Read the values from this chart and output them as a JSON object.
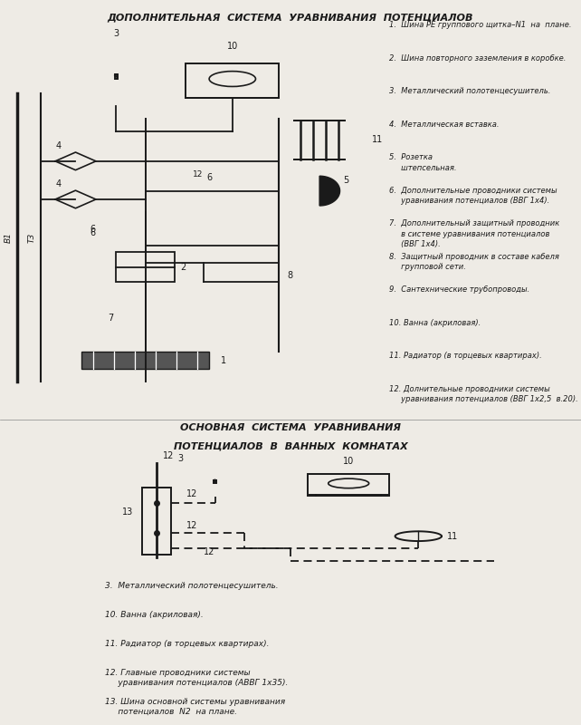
{
  "title1": "ДОПОЛНИТЕЛЬНАЯ  СИСТЕМА  УРАВНИВАНИЯ  ПОТЕНЦИАЛОВ",
  "title2_line1": "ОСНОВНАЯ  СИСТЕМА  УРАВНИВАНИЯ",
  "title2_line2": "ПОТЕНЦИАЛОВ  В  ВАННЫХ  КОМНАТАХ",
  "bg_color": "#eeebe5",
  "line_color": "#1a1a1a",
  "legend1": [
    "1.  Шина РЕ группового щитка–N1  на  плане.",
    "2.  Шина повторного заземления в коробке.",
    "3.  Металлический полотенцесушитель.",
    "4.  Металлическая вставка.",
    "5.  Розетка\n     штепсельная.",
    "6.  Дополнительные проводники системы\n     уравнивания потенциалов (ВВГ 1х4).",
    "7.  Дополнительный защитный проводник\n     в системе уравнивания потенциалов\n     (ВВГ 1х4).",
    "8.  Защитный проводник в составе кабеля\n     групповой сети.",
    "9.  Сантехнические трубопроводы.",
    "10. Ванна (акриловая).",
    "11. Радиатор (в торцевых квартирах).",
    "12. Долнительные проводники системы\n     уравнивания потенциалов (ВВГ 1х2,5  в.20)."
  ],
  "legend2": [
    "3.  Металлический полотенцесушитель.",
    "10. Ванна (акриловая).",
    "11. Радиатор (в торцевых квартирах).",
    "12. Главные проводники системы\n     уравнивания потенциалов (АВВГ 1х35).",
    "13. Шина основной системы уравнивания\n     потенциалов  N2  на плане."
  ]
}
